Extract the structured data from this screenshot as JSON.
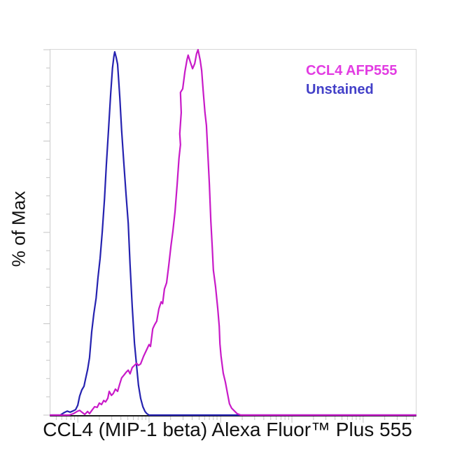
{
  "chart_data": {
    "type": "line",
    "subtype": "flow-cytometry-histogram-overlay",
    "title": "",
    "xlabel": "CCL4 (MIP-1 beta) Alexa Fluor™ Plus 555",
    "ylabel": "% of Max",
    "ylim": [
      0,
      100
    ],
    "x_axis": {
      "scale": "biexponential-log",
      "tick_labels_visible": false,
      "ticks_major_pct": [
        7.5,
        27.0,
        46.6,
        66.1,
        85.6
      ],
      "ticks_minor_pct": [
        1.6,
        3.1,
        4.4,
        5.6,
        6.6,
        13.4,
        16.8,
        19.3,
        21.2,
        22.7,
        24.0,
        25.1,
        26.1,
        32.9,
        36.3,
        38.8,
        40.7,
        42.2,
        43.5,
        44.6,
        45.6,
        52.5,
        55.9,
        58.4,
        60.3,
        61.8,
        63.1,
        64.2,
        65.2,
        72.0,
        75.4,
        77.9,
        79.8,
        81.3,
        82.6,
        83.7,
        84.7,
        91.5,
        94.9,
        97.4,
        99.3
      ]
    },
    "y_axis": {
      "tick_labels_visible": false,
      "ticks_major_pct": [
        0,
        25,
        50,
        75,
        100
      ],
      "ticks_minor_pct": [
        5,
        10,
        15,
        20,
        30,
        35,
        40,
        45,
        55,
        60,
        65,
        70,
        80,
        85,
        90,
        95
      ]
    },
    "grid": false,
    "tick_color": "#c4c4c4",
    "legend": {
      "position": "top-right",
      "entries": [
        {
          "label": "CCL4 AFP555",
          "color": "#e23ce2"
        },
        {
          "label": "Unstained",
          "color": "#4340c8"
        }
      ]
    },
    "series": [
      {
        "name": "CCL4 AFP555",
        "color": "#c81ac8",
        "peak_x_pct": 40.4,
        "points": [
          [
            0,
            0
          ],
          [
            5.2,
            0
          ],
          [
            6.3,
            0.4
          ],
          [
            7.3,
            1.0
          ],
          [
            8.0,
            1.3
          ],
          [
            8.6,
            0.8
          ],
          [
            9.4,
            0.2
          ],
          [
            10.2,
            1.0
          ],
          [
            10.7,
            0.4
          ],
          [
            11.5,
            1.5
          ],
          [
            12.1,
            2.3
          ],
          [
            12.8,
            2.1
          ],
          [
            13.4,
            3.3
          ],
          [
            14.0,
            2.9
          ],
          [
            14.6,
            4.0
          ],
          [
            15.1,
            3.6
          ],
          [
            15.7,
            4.6
          ],
          [
            16.1,
            6.5
          ],
          [
            16.7,
            5.4
          ],
          [
            17.2,
            5.9
          ],
          [
            17.8,
            7.1
          ],
          [
            18.4,
            6.5
          ],
          [
            19.0,
            8.6
          ],
          [
            19.5,
            10.2
          ],
          [
            20.1,
            10.9
          ],
          [
            20.7,
            11.7
          ],
          [
            21.3,
            12.3
          ],
          [
            21.8,
            11.3
          ],
          [
            22.4,
            13.0
          ],
          [
            23.0,
            13.6
          ],
          [
            23.6,
            14.2
          ],
          [
            24.1,
            13.6
          ],
          [
            24.7,
            14.0
          ],
          [
            25.5,
            16.1
          ],
          [
            26.2,
            17.6
          ],
          [
            27.0,
            19.3
          ],
          [
            27.4,
            18.8
          ],
          [
            28.0,
            23.6
          ],
          [
            28.5,
            24.7
          ],
          [
            29.1,
            25.7
          ],
          [
            29.7,
            29.1
          ],
          [
            30.3,
            31.0
          ],
          [
            30.7,
            30.5
          ],
          [
            31.2,
            34.5
          ],
          [
            31.8,
            36.2
          ],
          [
            32.4,
            41.0
          ],
          [
            33.0,
            46.4
          ],
          [
            33.5,
            50.2
          ],
          [
            34.1,
            55.6
          ],
          [
            34.7,
            63.2
          ],
          [
            35.2,
            70.3
          ],
          [
            35.6,
            74.0
          ],
          [
            35.4,
            77.0
          ],
          [
            35.8,
            82.8
          ],
          [
            35.6,
            88.3
          ],
          [
            36.2,
            89.3
          ],
          [
            36.8,
            93.9
          ],
          [
            37.4,
            97.3
          ],
          [
            37.7,
            98.5
          ],
          [
            38.3,
            96.6
          ],
          [
            38.9,
            94.8
          ],
          [
            39.5,
            96.2
          ],
          [
            40.0,
            98.9
          ],
          [
            40.4,
            100
          ],
          [
            41.0,
            97.1
          ],
          [
            41.4,
            94.3
          ],
          [
            41.8,
            88.9
          ],
          [
            42.3,
            82.8
          ],
          [
            42.7,
            79.3
          ],
          [
            43.1,
            71.3
          ],
          [
            43.5,
            63.2
          ],
          [
            43.9,
            53.1
          ],
          [
            44.3,
            46.0
          ],
          [
            44.6,
            39.7
          ],
          [
            45.2,
            35.2
          ],
          [
            45.8,
            29.1
          ],
          [
            46.2,
            24.3
          ],
          [
            46.4,
            19.5
          ],
          [
            46.7,
            16.1
          ],
          [
            47.3,
            11.5
          ],
          [
            47.9,
            9.0
          ],
          [
            48.5,
            5.7
          ],
          [
            49.0,
            3.1
          ],
          [
            49.6,
            1.9
          ],
          [
            50.4,
            1.1
          ],
          [
            51.1,
            0.4
          ],
          [
            52.1,
            0
          ],
          [
            100,
            0
          ]
        ]
      },
      {
        "name": "Unstained",
        "color": "#2522b0",
        "peak_x_pct": 17.6,
        "points": [
          [
            0,
            0
          ],
          [
            2.7,
            0
          ],
          [
            3.6,
            0.6
          ],
          [
            4.6,
            1.1
          ],
          [
            5.4,
            0.8
          ],
          [
            6.1,
            1.1
          ],
          [
            6.9,
            1.5
          ],
          [
            7.5,
            2.7
          ],
          [
            8.0,
            5.2
          ],
          [
            8.6,
            6.9
          ],
          [
            9.2,
            7.9
          ],
          [
            9.6,
            9.8
          ],
          [
            10.2,
            12.5
          ],
          [
            10.7,
            15.7
          ],
          [
            11.3,
            22.8
          ],
          [
            11.9,
            27.8
          ],
          [
            12.5,
            32.0
          ],
          [
            13.0,
            37.5
          ],
          [
            13.6,
            42.9
          ],
          [
            14.2,
            50.2
          ],
          [
            14.8,
            59.2
          ],
          [
            15.3,
            68.4
          ],
          [
            15.9,
            78.0
          ],
          [
            16.5,
            87.9
          ],
          [
            17.0,
            95.0
          ],
          [
            17.4,
            98.3
          ],
          [
            17.6,
            99.4
          ],
          [
            18.0,
            97.9
          ],
          [
            18.4,
            96.0
          ],
          [
            18.6,
            92.9
          ],
          [
            19.0,
            86.8
          ],
          [
            19.5,
            77.8
          ],
          [
            20.1,
            69.0
          ],
          [
            20.7,
            60.3
          ],
          [
            21.3,
            52.5
          ],
          [
            21.8,
            41.2
          ],
          [
            22.4,
            29.7
          ],
          [
            23.0,
            19.7
          ],
          [
            23.6,
            13.4
          ],
          [
            24.1,
            8.2
          ],
          [
            24.7,
            4.6
          ],
          [
            25.3,
            2.3
          ],
          [
            25.9,
            1.0
          ],
          [
            26.4,
            0.4
          ],
          [
            27.0,
            0
          ],
          [
            100,
            0
          ]
        ]
      }
    ]
  }
}
